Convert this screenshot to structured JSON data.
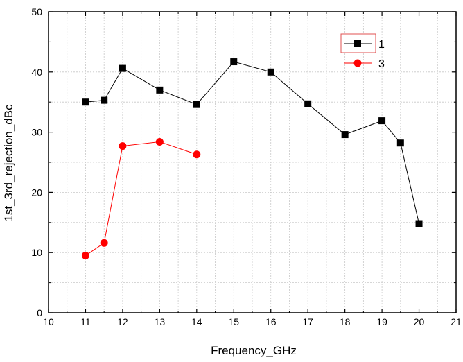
{
  "chart_data": {
    "type": "line",
    "xlabel": "Frequency_GHz",
    "ylabel": "1st_3rd_rejection_dBc",
    "xlim": [
      10,
      21
    ],
    "ylim": [
      0,
      50
    ],
    "xticks": [
      "10",
      "11",
      "12",
      "13",
      "14",
      "15",
      "16",
      "17",
      "18",
      "19",
      "20",
      "21"
    ],
    "yticks": [
      "0",
      "10",
      "20",
      "30",
      "40",
      "50"
    ],
    "grid": true,
    "legend_position": "top-right",
    "series": [
      {
        "name": "1",
        "color": "#000000",
        "marker": "square",
        "x": [
          11,
          11.5,
          12,
          13,
          14,
          15,
          16,
          17,
          18,
          19,
          19.5,
          20
        ],
        "y": [
          35.0,
          35.3,
          40.6,
          37.0,
          34.6,
          41.7,
          40.0,
          34.7,
          29.6,
          31.9,
          28.2,
          14.8
        ]
      },
      {
        "name": "3",
        "color": "#ff0000",
        "marker": "circle",
        "x": [
          11,
          11.5,
          12,
          13,
          14
        ],
        "y": [
          9.5,
          11.6,
          27.7,
          28.4,
          26.3
        ]
      }
    ]
  }
}
